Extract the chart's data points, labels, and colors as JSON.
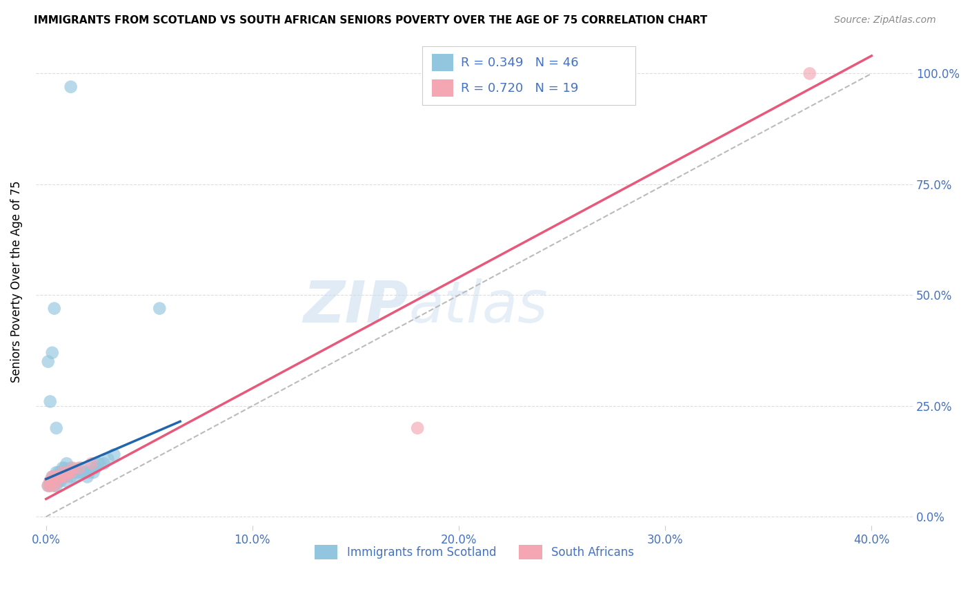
{
  "title": "IMMIGRANTS FROM SCOTLAND VS SOUTH AFRICAN SENIORS POVERTY OVER THE AGE OF 75 CORRELATION CHART",
  "source": "Source: ZipAtlas.com",
  "ylabel": "Seniors Poverty Over the Age of 75",
  "xlim": [
    0.0,
    0.4
  ],
  "ylim": [
    0.0,
    1.05
  ],
  "watermark_zip": "ZIP",
  "watermark_atlas": "atlas",
  "legend_r1": "R = 0.349",
  "legend_n1": "N = 46",
  "legend_r2": "R = 0.720",
  "legend_n2": "N = 19",
  "scotland_color": "#92C5DE",
  "sa_color": "#F4A6B2",
  "scotland_line_color": "#2166AC",
  "sa_line_color": "#E8587A",
  "ref_line_color": "#BBBBBB",
  "scotland_x": [
    0.001,
    0.002,
    0.002,
    0.003,
    0.003,
    0.004,
    0.004,
    0.005,
    0.005,
    0.006,
    0.006,
    0.007,
    0.007,
    0.008,
    0.008,
    0.009,
    0.009,
    0.01,
    0.01,
    0.011,
    0.012,
    0.012,
    0.013,
    0.014,
    0.015,
    0.016,
    0.017,
    0.018,
    0.019,
    0.02,
    0.021,
    0.022,
    0.023,
    0.024,
    0.025,
    0.026,
    0.028,
    0.03,
    0.033,
    0.001,
    0.002,
    0.003,
    0.004,
    0.005,
    0.012,
    0.055
  ],
  "scotland_y": [
    0.07,
    0.07,
    0.08,
    0.08,
    0.09,
    0.07,
    0.09,
    0.07,
    0.1,
    0.08,
    0.1,
    0.08,
    0.1,
    0.09,
    0.11,
    0.09,
    0.11,
    0.08,
    0.12,
    0.1,
    0.09,
    0.11,
    0.1,
    0.09,
    0.1,
    0.1,
    0.11,
    0.1,
    0.1,
    0.09,
    0.1,
    0.11,
    0.1,
    0.11,
    0.12,
    0.12,
    0.12,
    0.13,
    0.14,
    0.35,
    0.26,
    0.37,
    0.47,
    0.2,
    0.97,
    0.47
  ],
  "sa_x": [
    0.001,
    0.002,
    0.002,
    0.003,
    0.004,
    0.004,
    0.005,
    0.006,
    0.007,
    0.008,
    0.009,
    0.01,
    0.011,
    0.012,
    0.013,
    0.016,
    0.022,
    0.18,
    0.37
  ],
  "sa_y": [
    0.07,
    0.07,
    0.08,
    0.09,
    0.07,
    0.09,
    0.08,
    0.09,
    0.09,
    0.1,
    0.09,
    0.1,
    0.1,
    0.1,
    0.11,
    0.11,
    0.12,
    0.2,
    1.0
  ],
  "scotland_line_x": [
    0.0,
    0.065
  ],
  "scotland_line_y": [
    0.085,
    0.215
  ],
  "sa_line_x": [
    0.0,
    0.4
  ],
  "sa_line_y": [
    0.04,
    1.04
  ],
  "ref_line_x": [
    0.0,
    0.4
  ],
  "ref_line_y": [
    0.0,
    1.0
  ],
  "xtick_vals": [
    0.0,
    0.1,
    0.2,
    0.3,
    0.4
  ],
  "ytick_vals": [
    0.0,
    0.25,
    0.5,
    0.75,
    1.0
  ],
  "legend_label1": "Immigrants from Scotland",
  "legend_label2": "South Africans"
}
